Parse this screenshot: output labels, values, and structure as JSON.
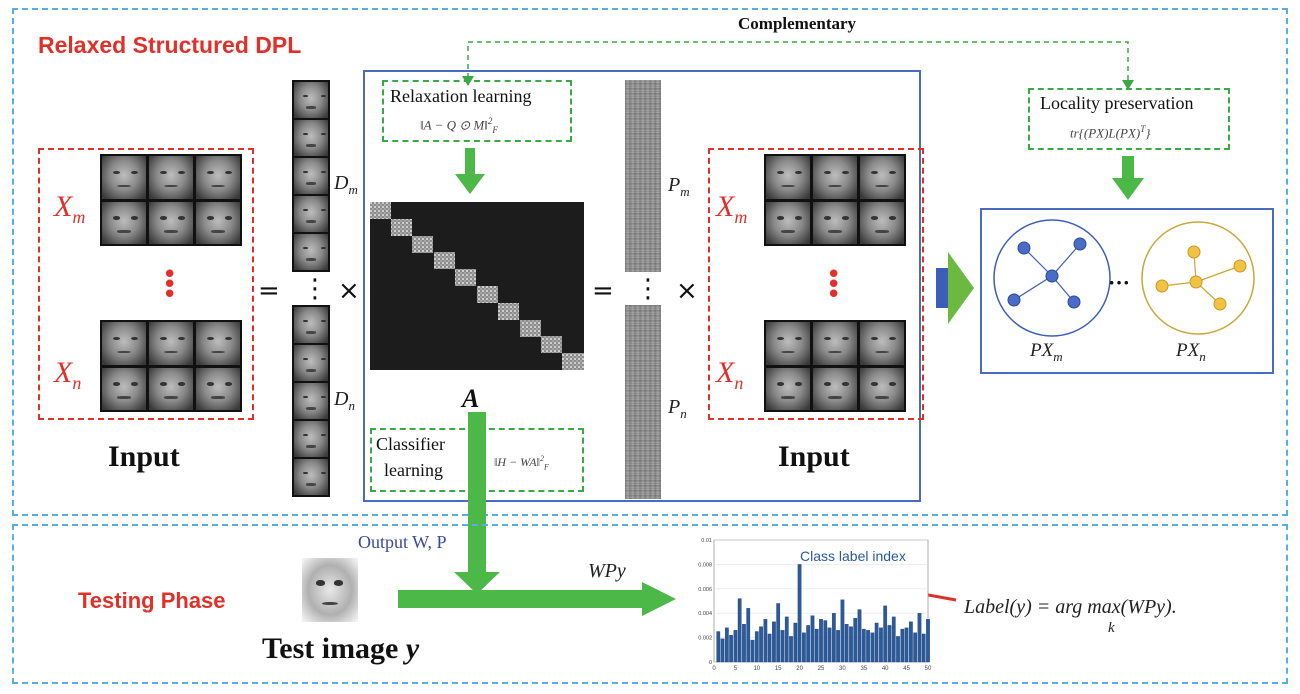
{
  "training": {
    "title": "Relaxed Structured DPL",
    "complementary_label": "Complementary",
    "input_label_left": "Input",
    "input_label_right": "Input",
    "xm": "X",
    "xm_sub": "m",
    "xn": "X",
    "xn_sub": "n",
    "dm": "D",
    "dm_sub": "m",
    "dn": "D",
    "dn_sub": "n",
    "pm": "P",
    "pm_sub": "m",
    "pn": "P",
    "pn_sub": "n",
    "equals": "=",
    "times": "×",
    "vdots": "⋮",
    "a_label": "A",
    "relaxation_title": "Relaxation learning",
    "relaxation_formula": "‖A − Q ⊙ M‖",
    "relaxation_formula_sup": "2",
    "relaxation_formula_sub": "F",
    "classifier_title_1": "Classifier",
    "classifier_title_2": "learning",
    "classifier_formula": "‖H − WA‖",
    "classifier_formula_sup": "2",
    "classifier_formula_sub": "F",
    "locality_title": "Locality preservation",
    "locality_formula": "tr{(PX)L(PX)",
    "locality_formula_sup": "T",
    "locality_formula_end": "}",
    "ellipsis": "···",
    "pxm": "PX",
    "pxm_sub": "m",
    "pxn": "PX",
    "pxn_sub": "n"
  },
  "testing": {
    "title": "Testing Phase",
    "output_label": "Output W, P",
    "wpy": "WPy",
    "test_image_label": "Test image",
    "test_image_var": "y",
    "class_label_index": "Class label index",
    "label_formula_left": "Label(y) = arg max",
    "label_formula_sub": "k",
    "label_formula_right": "(WPy)."
  },
  "colors": {
    "red": "#e0302a",
    "green": "#3aa845",
    "blue": "#4a6cc0",
    "light_blue": "#5aaee0",
    "bar_blue": "#2a5a9a",
    "node_blue": "#4a6cc8",
    "node_yellow": "#f2c244"
  },
  "chart_data": {
    "type": "bar",
    "xlim": [
      0,
      50
    ],
    "ylim": [
      0,
      0.01
    ],
    "xticks": [
      "0",
      "5",
      "10",
      "15",
      "20",
      "25",
      "30",
      "35",
      "40",
      "45",
      "50"
    ],
    "yticks": [
      "0",
      "0.002",
      "0.004",
      "0.006",
      "0.008",
      "0.01"
    ],
    "x": [
      1,
      2,
      3,
      4,
      5,
      6,
      7,
      8,
      9,
      10,
      11,
      12,
      13,
      14,
      15,
      16,
      17,
      18,
      19,
      20,
      21,
      22,
      23,
      24,
      25,
      26,
      27,
      28,
      29,
      30,
      31,
      32,
      33,
      34,
      35,
      36,
      37,
      38,
      39,
      40,
      41,
      42,
      43,
      44,
      45,
      46,
      47,
      48,
      49,
      50
    ],
    "values": [
      0.0025,
      0.0019,
      0.0028,
      0.0022,
      0.0026,
      0.0052,
      0.0031,
      0.0044,
      0.0018,
      0.0025,
      0.0029,
      0.0035,
      0.0023,
      0.0033,
      0.0048,
      0.0026,
      0.0037,
      0.0021,
      0.0032,
      0.008,
      0.0024,
      0.003,
      0.0038,
      0.0027,
      0.0035,
      0.0034,
      0.0028,
      0.004,
      0.0026,
      0.0051,
      0.0031,
      0.0029,
      0.0036,
      0.0043,
      0.0027,
      0.0026,
      0.0024,
      0.0032,
      0.0028,
      0.0046,
      0.003,
      0.0037,
      0.0021,
      0.0027,
      0.0028,
      0.0033,
      0.0024,
      0.004,
      0.0023,
      0.0035
    ],
    "highlight_index": 19
  }
}
